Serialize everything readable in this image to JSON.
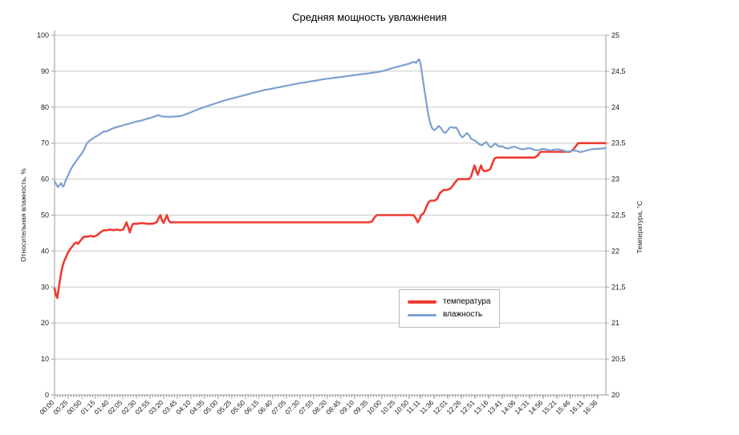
{
  "title": "Средняя мощность увлажнения",
  "colors": {
    "temperature": "#ee3b33",
    "humidity": "#7da0d0",
    "grid": "#c8c8c8",
    "axis_line": "#9b9b9b",
    "tick_text": "#1a1a1a",
    "background": "#ffffff",
    "legend_border": "#b9b9b9"
  },
  "legend": {
    "items": [
      {
        "label": "температура",
        "color": "#ee3b33",
        "thickness": 4
      },
      {
        "label": "влажность",
        "color": "#7da0d0",
        "thickness": 3
      }
    ]
  },
  "chart_data": {
    "type": "line",
    "title": "Средняя мощность увлажнения",
    "grid": "horizontal-only",
    "legend_position": "center-bottom-inside",
    "left_axis": {
      "label": "Относительная влажность, %",
      "min": 0,
      "max": 100,
      "step": 10,
      "tick_labels": [
        "0",
        "10",
        "20",
        "30",
        "40",
        "50",
        "60",
        "70",
        "80",
        "90",
        "100"
      ]
    },
    "right_axis": {
      "label": "Температура, °С",
      "min": 20,
      "max": 25,
      "step": 0.5,
      "tick_labels": [
        "20",
        "20,5",
        "21",
        "21,5",
        "22",
        "22,5",
        "23",
        "23,5",
        "24",
        "24,5",
        "25"
      ]
    },
    "x_axis": {
      "unit": "time",
      "minor_tick_minutes": 5,
      "tick_labels": [
        "00:00",
        "00:25",
        "00:50",
        "01:15",
        "01:40",
        "02:05",
        "02:30",
        "02:55",
        "03:20",
        "03:45",
        "04:10",
        "04:35",
        "05:00",
        "05:25",
        "05:50",
        "06:15",
        "06:40",
        "07:05",
        "07:30",
        "07:55",
        "08:20",
        "08:45",
        "09:10",
        "09:35",
        "10:00",
        "10:25",
        "10:50",
        "11:11",
        "11:36",
        "12:01",
        "12:26",
        "12:51",
        "13:16",
        "13:41",
        "14:06",
        "14:31",
        "14:56",
        "15:21",
        "15:46",
        "16:11",
        "16:36"
      ],
      "tick_minutes": [
        0,
        25,
        50,
        75,
        100,
        125,
        150,
        175,
        200,
        225,
        250,
        275,
        300,
        325,
        350,
        375,
        400,
        425,
        450,
        475,
        500,
        525,
        550,
        575,
        600,
        625,
        650,
        671,
        696,
        721,
        746,
        771,
        796,
        821,
        846,
        871,
        896,
        921,
        946,
        971,
        996
      ],
      "domain_minutes": [
        0,
        1011
      ]
    },
    "series": [
      {
        "name": "температура",
        "axis": "right",
        "color": "#ee3b33",
        "width": 2.6,
        "points": [
          [
            0,
            21.48
          ],
          [
            3,
            21.38
          ],
          [
            5,
            21.35
          ],
          [
            8,
            21.5
          ],
          [
            11,
            21.65
          ],
          [
            14,
            21.77
          ],
          [
            17,
            21.85
          ],
          [
            20,
            21.9
          ],
          [
            24,
            21.97
          ],
          [
            28,
            22.02
          ],
          [
            32,
            22.06
          ],
          [
            36,
            22.1
          ],
          [
            40,
            22.12
          ],
          [
            43,
            22.1
          ],
          [
            46,
            22.13
          ],
          [
            50,
            22.17
          ],
          [
            54,
            22.2
          ],
          [
            60,
            22.2
          ],
          [
            66,
            22.21
          ],
          [
            72,
            22.2
          ],
          [
            78,
            22.22
          ],
          [
            84,
            22.26
          ],
          [
            90,
            22.29
          ],
          [
            96,
            22.29
          ],
          [
            102,
            22.3
          ],
          [
            108,
            22.29
          ],
          [
            114,
            22.3
          ],
          [
            120,
            22.29
          ],
          [
            126,
            22.3
          ],
          [
            129,
            22.35
          ],
          [
            132,
            22.4
          ],
          [
            135,
            22.33
          ],
          [
            138,
            22.26
          ],
          [
            141,
            22.34
          ],
          [
            144,
            22.38
          ],
          [
            152,
            22.38
          ],
          [
            160,
            22.39
          ],
          [
            170,
            22.38
          ],
          [
            180,
            22.38
          ],
          [
            187,
            22.4
          ],
          [
            191,
            22.46
          ],
          [
            194,
            22.5
          ],
          [
            197,
            22.43
          ],
          [
            200,
            22.39
          ],
          [
            203,
            22.45
          ],
          [
            206,
            22.5
          ],
          [
            209,
            22.43
          ],
          [
            212,
            22.4
          ],
          [
            220,
            22.4
          ],
          [
            260,
            22.4
          ],
          [
            300,
            22.4
          ],
          [
            340,
            22.4
          ],
          [
            380,
            22.4
          ],
          [
            420,
            22.4
          ],
          [
            460,
            22.4
          ],
          [
            500,
            22.4
          ],
          [
            540,
            22.4
          ],
          [
            575,
            22.4
          ],
          [
            582,
            22.41
          ],
          [
            587,
            22.47
          ],
          [
            591,
            22.5
          ],
          [
            610,
            22.5
          ],
          [
            630,
            22.5
          ],
          [
            650,
            22.5
          ],
          [
            658,
            22.5
          ],
          [
            662,
            22.46
          ],
          [
            666,
            22.4
          ],
          [
            669,
            22.44
          ],
          [
            672,
            22.5
          ],
          [
            677,
            22.53
          ],
          [
            681,
            22.6
          ],
          [
            685,
            22.67
          ],
          [
            689,
            22.7
          ],
          [
            697,
            22.7
          ],
          [
            702,
            22.73
          ],
          [
            706,
            22.8
          ],
          [
            710,
            22.83
          ],
          [
            714,
            22.85
          ],
          [
            720,
            22.85
          ],
          [
            726,
            22.87
          ],
          [
            731,
            22.92
          ],
          [
            736,
            22.97
          ],
          [
            740,
            23.0
          ],
          [
            750,
            23.0
          ],
          [
            760,
            23.0
          ],
          [
            764,
            23.04
          ],
          [
            767,
            23.12
          ],
          [
            770,
            23.19
          ],
          [
            773,
            23.12
          ],
          [
            776,
            23.06
          ],
          [
            779,
            23.13
          ],
          [
            782,
            23.19
          ],
          [
            785,
            23.13
          ],
          [
            788,
            23.11
          ],
          [
            794,
            23.12
          ],
          [
            799,
            23.14
          ],
          [
            803,
            23.22
          ],
          [
            807,
            23.29
          ],
          [
            811,
            23.3
          ],
          [
            830,
            23.3
          ],
          [
            855,
            23.3
          ],
          [
            880,
            23.3
          ],
          [
            886,
            23.33
          ],
          [
            891,
            23.38
          ],
          [
            905,
            23.38
          ],
          [
            925,
            23.38
          ],
          [
            945,
            23.38
          ],
          [
            951,
            23.41
          ],
          [
            956,
            23.46
          ],
          [
            960,
            23.5
          ],
          [
            975,
            23.5
          ],
          [
            990,
            23.5
          ],
          [
            1010,
            23.5
          ]
        ]
      },
      {
        "name": "влажность",
        "axis": "left",
        "color": "#7da0d0",
        "width": 2.2,
        "points": [
          [
            0,
            59.4
          ],
          [
            3,
            58.6
          ],
          [
            6,
            57.8
          ],
          [
            9,
            58.3
          ],
          [
            12,
            58.9
          ],
          [
            14,
            58.2
          ],
          [
            16,
            57.9
          ],
          [
            18,
            58.5
          ],
          [
            20,
            59.5
          ],
          [
            23,
            60.5
          ],
          [
            26,
            61.5
          ],
          [
            30,
            62.8
          ],
          [
            34,
            63.8
          ],
          [
            38,
            64.6
          ],
          [
            42,
            65.6
          ],
          [
            46,
            66.4
          ],
          [
            50,
            67.2
          ],
          [
            54,
            68.2
          ],
          [
            58,
            69.6
          ],
          [
            62,
            70.4
          ],
          [
            66,
            70.9
          ],
          [
            70,
            71.3
          ],
          [
            75,
            71.8
          ],
          [
            80,
            72.2
          ],
          [
            85,
            72.7
          ],
          [
            90,
            73.2
          ],
          [
            95,
            73.3
          ],
          [
            100,
            73.6
          ],
          [
            105,
            74.0
          ],
          [
            110,
            74.3
          ],
          [
            115,
            74.5
          ],
          [
            120,
            74.7
          ],
          [
            125,
            74.9
          ],
          [
            130,
            75.2
          ],
          [
            135,
            75.3
          ],
          [
            140,
            75.6
          ],
          [
            145,
            75.8
          ],
          [
            150,
            76.0
          ],
          [
            155,
            76.2
          ],
          [
            160,
            76.3
          ],
          [
            165,
            76.6
          ],
          [
            170,
            76.8
          ],
          [
            175,
            77.0
          ],
          [
            180,
            77.2
          ],
          [
            185,
            77.5
          ],
          [
            190,
            77.8
          ],
          [
            195,
            77.5
          ],
          [
            200,
            77.4
          ],
          [
            210,
            77.3
          ],
          [
            220,
            77.4
          ],
          [
            230,
            77.5
          ],
          [
            235,
            77.7
          ],
          [
            240,
            78.0
          ],
          [
            250,
            78.6
          ],
          [
            260,
            79.2
          ],
          [
            270,
            79.8
          ],
          [
            280,
            80.3
          ],
          [
            290,
            80.8
          ],
          [
            300,
            81.3
          ],
          [
            310,
            81.8
          ],
          [
            320,
            82.2
          ],
          [
            330,
            82.6
          ],
          [
            340,
            83.0
          ],
          [
            350,
            83.4
          ],
          [
            360,
            83.8
          ],
          [
            370,
            84.2
          ],
          [
            380,
            84.6
          ],
          [
            390,
            84.9
          ],
          [
            400,
            85.2
          ],
          [
            410,
            85.5
          ],
          [
            420,
            85.8
          ],
          [
            430,
            86.1
          ],
          [
            440,
            86.4
          ],
          [
            450,
            86.7
          ],
          [
            460,
            86.9
          ],
          [
            470,
            87.2
          ],
          [
            480,
            87.4
          ],
          [
            490,
            87.7
          ],
          [
            500,
            87.9
          ],
          [
            510,
            88.1
          ],
          [
            520,
            88.3
          ],
          [
            530,
            88.5
          ],
          [
            540,
            88.7
          ],
          [
            550,
            88.9
          ],
          [
            560,
            89.1
          ],
          [
            570,
            89.3
          ],
          [
            580,
            89.5
          ],
          [
            590,
            89.7
          ],
          [
            600,
            90.0
          ],
          [
            610,
            90.4
          ],
          [
            620,
            90.9
          ],
          [
            630,
            91.3
          ],
          [
            640,
            91.7
          ],
          [
            650,
            92.1
          ],
          [
            655,
            92.4
          ],
          [
            660,
            92.6
          ],
          [
            663,
            92.3
          ],
          [
            666,
            93.0
          ],
          [
            668,
            93.3
          ],
          [
            670,
            92.8
          ],
          [
            672,
            91.0
          ],
          [
            676,
            87.0
          ],
          [
            680,
            83.0
          ],
          [
            684,
            79.0
          ],
          [
            688,
            76.0
          ],
          [
            692,
            74.2
          ],
          [
            696,
            73.6
          ],
          [
            700,
            74.0
          ],
          [
            704,
            74.8
          ],
          [
            708,
            74.3
          ],
          [
            712,
            73.3
          ],
          [
            716,
            72.8
          ],
          [
            720,
            73.4
          ],
          [
            724,
            74.2
          ],
          [
            728,
            74.5
          ],
          [
            732,
            74.2
          ],
          [
            736,
            74.4
          ],
          [
            740,
            73.5
          ],
          [
            744,
            72.2
          ],
          [
            748,
            71.6
          ],
          [
            752,
            72.2
          ],
          [
            756,
            72.8
          ],
          [
            760,
            72.2
          ],
          [
            764,
            71.2
          ],
          [
            768,
            70.9
          ],
          [
            772,
            70.6
          ],
          [
            776,
            70.0
          ],
          [
            780,
            69.6
          ],
          [
            784,
            69.4
          ],
          [
            788,
            70.0
          ],
          [
            792,
            70.3
          ],
          [
            796,
            69.3
          ],
          [
            800,
            68.8
          ],
          [
            804,
            69.4
          ],
          [
            808,
            69.9
          ],
          [
            812,
            69.4
          ],
          [
            816,
            69.0
          ],
          [
            820,
            69.2
          ],
          [
            826,
            68.7
          ],
          [
            832,
            68.5
          ],
          [
            838,
            68.9
          ],
          [
            844,
            69.0
          ],
          [
            850,
            68.6
          ],
          [
            856,
            68.3
          ],
          [
            862,
            68.4
          ],
          [
            868,
            68.6
          ],
          [
            874,
            68.5
          ],
          [
            880,
            68.1
          ],
          [
            886,
            68.0
          ],
          [
            892,
            68.3
          ],
          [
            898,
            68.4
          ],
          [
            904,
            68.1
          ],
          [
            910,
            68.0
          ],
          [
            916,
            68.2
          ],
          [
            922,
            68.3
          ],
          [
            928,
            68.1
          ],
          [
            934,
            67.9
          ],
          [
            940,
            67.6
          ],
          [
            946,
            67.8
          ],
          [
            952,
            68.0
          ],
          [
            958,
            67.8
          ],
          [
            964,
            67.5
          ],
          [
            970,
            67.7
          ],
          [
            976,
            68.0
          ],
          [
            982,
            68.2
          ],
          [
            988,
            68.4
          ],
          [
            996,
            68.4
          ],
          [
            1010,
            68.6
          ]
        ]
      }
    ]
  }
}
